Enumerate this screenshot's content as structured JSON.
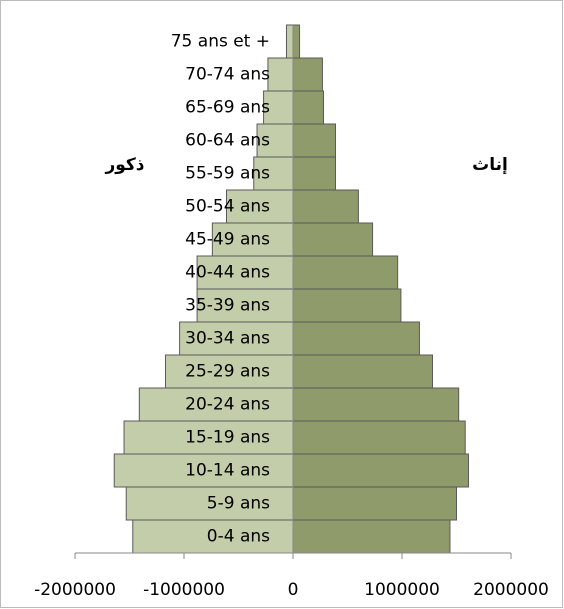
{
  "chart_data": {
    "type": "pyramid",
    "categories": [
      "0-4 ans",
      "5-9 ans",
      "10-14 ans",
      "15-19 ans",
      "20-24 ans",
      "25-29 ans",
      "30-34 ans",
      "35-39 ans",
      "40-44 ans",
      "45-49 ans",
      "50-54 ans",
      "55-59 ans",
      "60-64 ans",
      "65-69 ans",
      "70-74 ans",
      "75 ans et +"
    ],
    "series": [
      {
        "name": "ذكور",
        "color": "#c4cda9",
        "values": [
          -1470000,
          -1530000,
          -1640000,
          -1550000,
          -1410000,
          -1170000,
          -1040000,
          -880000,
          -880000,
          -740000,
          -610000,
          -360000,
          -330000,
          -270000,
          -230000,
          -60000
        ]
      },
      {
        "name": "إناث",
        "color": "#8f9b6b",
        "values": [
          1440000,
          1500000,
          1610000,
          1580000,
          1520000,
          1280000,
          1160000,
          990000,
          960000,
          730000,
          600000,
          390000,
          390000,
          280000,
          270000,
          60000
        ]
      }
    ],
    "xlim": [
      -2000000,
      2000000
    ],
    "xticks": [
      -2000000,
      -1000000,
      0,
      1000000,
      2000000
    ]
  }
}
